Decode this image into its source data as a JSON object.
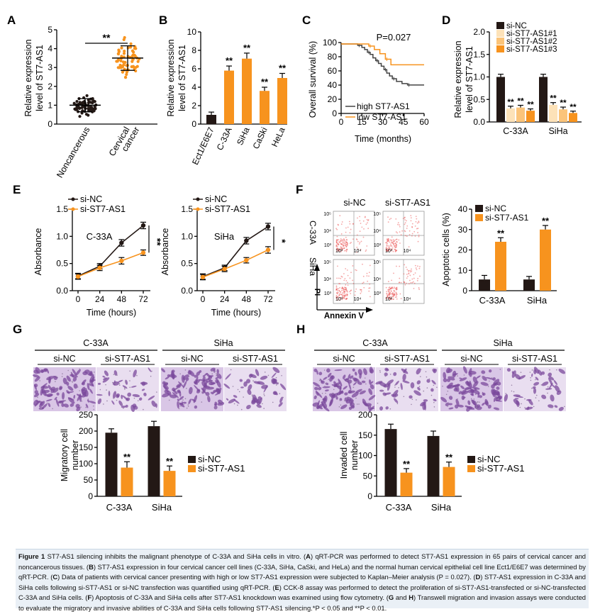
{
  "colors": {
    "black": "#231815",
    "orange": "#f7931e",
    "pale": "#fde2b8",
    "light": "#fbc47a",
    "flowdot": "#e83a3a",
    "stain": "#7b4a9c"
  },
  "panels": {
    "A": {
      "letter": "A",
      "ylabel": [
        "Relative expression",
        "level of ST7-AS1"
      ],
      "yticks": [
        "0",
        "1",
        "2",
        "3",
        "4",
        "5"
      ],
      "cats": [
        "Noncancerous",
        "Cervical cancer"
      ],
      "cat2": [
        "Cervical",
        "cancer"
      ],
      "sig": "**"
    },
    "B": {
      "letter": "B",
      "ylabel": [
        "Relative expression",
        "level of ST7-AS1"
      ],
      "yticks": [
        "0",
        "2",
        "4",
        "6",
        "8",
        "10"
      ],
      "cats": [
        "Ect1/E6E7",
        "C-33A",
        "SiHa",
        "CaSki",
        "HeLa"
      ],
      "sig": [
        "",
        "**",
        "**",
        "**",
        "**"
      ]
    },
    "C": {
      "letter": "C",
      "pval": "P=0.027",
      "ylabel": "Overall survival (%)",
      "xlabel": "Time (months)",
      "yticks": [
        "0",
        "20",
        "40",
        "60",
        "80",
        "100"
      ],
      "xticks": [
        "0",
        "15",
        "30",
        "45",
        "60"
      ],
      "legend": [
        "high ST7-AS1",
        "low ST7-AS1"
      ]
    },
    "D": {
      "letter": "D",
      "ylabel": [
        "Relative expression",
        "level of ST7-AS1"
      ],
      "yticks": [
        "0.0",
        "0.5",
        "1.0",
        "1.5",
        "2.0"
      ],
      "legend": [
        "si-NC",
        "si-ST7-AS1#1",
        "si-ST7-AS1#2",
        "si-ST7-AS1#3"
      ],
      "cats": [
        "C-33A",
        "SiHa"
      ],
      "sig": "**"
    },
    "E": {
      "letter": "E",
      "ylabel": "Absorbance",
      "xlabel": "Time (hours)",
      "legend": [
        "si-NC",
        "si-ST7-AS1"
      ],
      "xticks": [
        "0",
        "24",
        "48",
        "72"
      ],
      "yticks": [
        "0.0",
        "0.5",
        "1.0",
        "1.5"
      ],
      "cells": [
        "C-33A",
        "SiHa"
      ],
      "sig": [
        "**",
        "*"
      ]
    },
    "F": {
      "letter": "F",
      "cols": [
        "si-NC",
        "si-ST7-AS1"
      ],
      "rows": [
        "C-33A",
        "SiHa"
      ],
      "xaxis": "Annexin V",
      "yaxis": "PI",
      "ticks": [
        "10⁵",
        "10⁴",
        "10³",
        "10³",
        "10⁴"
      ],
      "ylabel": "Apoptotic cells (%)",
      "yticks": [
        "0",
        "10",
        "20",
        "30",
        "40"
      ],
      "legend": [
        "si-NC",
        "si-ST7-AS1"
      ],
      "cats": [
        "C-33A",
        "SiHa"
      ],
      "sig": "**"
    },
    "G": {
      "letter": "G",
      "groups": [
        "C-33A",
        "SiHa"
      ],
      "cols": [
        "si-NC",
        "si-ST7-AS1",
        "si-NC",
        "si-ST7-AS1"
      ],
      "ylabel": [
        "Migratory cell",
        "number"
      ],
      "yticks": [
        "0",
        "50",
        "100",
        "150",
        "200",
        "250"
      ],
      "legend": [
        "si-NC",
        "si-ST7-AS1"
      ],
      "cats": [
        "C-33A",
        "SiHa"
      ],
      "sig": "**"
    },
    "H": {
      "letter": "H",
      "groups": [
        "C-33A",
        "SiHa"
      ],
      "cols": [
        "si-NC",
        "si-ST7-AS1",
        "si-NC",
        "si-ST7-AS1"
      ],
      "ylabel": [
        "Invaded cell",
        "number"
      ],
      "yticks": [
        "0",
        "50",
        "100",
        "150",
        "200"
      ],
      "legend": [
        "si-NC",
        "si-ST7-AS1"
      ],
      "cats": [
        "C-33A",
        "SiHa"
      ],
      "sig": "**"
    }
  },
  "chart_data": [
    {
      "panel": "A",
      "type": "scatter",
      "title": "",
      "ylabel": "Relative expression level of ST7-AS1",
      "ylim": [
        0,
        5
      ],
      "categories": [
        "Noncancerous",
        "Cervical cancer"
      ],
      "mean": [
        1.0,
        3.5
      ],
      "sd": [
        0.35,
        0.65
      ],
      "n_per_group": 65
    },
    {
      "panel": "B",
      "type": "bar",
      "ylabel": "Relative expression level of ST7-AS1",
      "ylim": [
        0,
        10
      ],
      "categories": [
        "Ect1/E6E7",
        "C-33A",
        "SiHa",
        "CaSki",
        "HeLa"
      ],
      "values": [
        1.0,
        5.8,
        7.1,
        3.6,
        5.0
      ],
      "errors": [
        0.3,
        0.5,
        0.6,
        0.4,
        0.5
      ]
    },
    {
      "panel": "C",
      "type": "line",
      "ylabel": "Overall survival (%)",
      "xlabel": "Time (months)",
      "xlim": [
        0,
        60
      ],
      "ylim": [
        0,
        100
      ],
      "series": [
        {
          "name": "high ST7-AS1",
          "x": [
            0,
            8,
            12,
            15,
            17,
            19,
            21,
            23,
            25,
            27,
            29,
            31,
            33,
            35,
            37,
            40,
            44,
            48,
            60
          ],
          "y": [
            100,
            100,
            98,
            95,
            92,
            88,
            85,
            80,
            76,
            72,
            68,
            63,
            58,
            54,
            50,
            46,
            43,
            41,
            41
          ]
        },
        {
          "name": "low ST7-AS1",
          "x": [
            0,
            15,
            20,
            24,
            28,
            32,
            36,
            60
          ],
          "y": [
            100,
            100,
            97,
            92,
            86,
            78,
            70,
            70
          ]
        }
      ]
    },
    {
      "panel": "D",
      "type": "bar",
      "ylabel": "Relative expression level of ST7-AS1",
      "ylim": [
        0,
        2.0
      ],
      "categories": [
        "C-33A",
        "SiHa"
      ],
      "series": [
        {
          "name": "si-NC",
          "values": [
            1.0,
            1.0
          ],
          "errors": [
            0.06,
            0.06
          ]
        },
        {
          "name": "si-ST7-AS1#1",
          "values": [
            0.3,
            0.38
          ],
          "errors": [
            0.05,
            0.05
          ]
        },
        {
          "name": "si-ST7-AS1#2",
          "values": [
            0.32,
            0.28
          ],
          "errors": [
            0.05,
            0.05
          ]
        },
        {
          "name": "si-ST7-AS1#3",
          "values": [
            0.25,
            0.2
          ],
          "errors": [
            0.04,
            0.04
          ]
        }
      ]
    },
    {
      "panel": "E1",
      "type": "line",
      "title": "C-33A",
      "ylabel": "Absorbance",
      "xlabel": "Time (hours)",
      "ylim": [
        0,
        1.5
      ],
      "x": [
        0,
        24,
        48,
        72
      ],
      "series": [
        {
          "name": "si-NC",
          "values": [
            0.27,
            0.45,
            0.88,
            1.2
          ],
          "errors": [
            0.05,
            0.05,
            0.06,
            0.06
          ]
        },
        {
          "name": "si-ST7-AS1",
          "values": [
            0.26,
            0.42,
            0.55,
            0.7
          ],
          "errors": [
            0.05,
            0.05,
            0.06,
            0.05
          ]
        }
      ]
    },
    {
      "panel": "E2",
      "type": "line",
      "title": "SiHa",
      "ylabel": "Absorbance",
      "xlabel": "Time (hours)",
      "ylim": [
        0,
        1.5
      ],
      "x": [
        0,
        24,
        48,
        72
      ],
      "series": [
        {
          "name": "si-NC",
          "values": [
            0.26,
            0.42,
            0.92,
            1.18
          ],
          "errors": [
            0.05,
            0.05,
            0.06,
            0.06
          ]
        },
        {
          "name": "si-ST7-AS1",
          "values": [
            0.25,
            0.4,
            0.56,
            0.75
          ],
          "errors": [
            0.05,
            0.05,
            0.05,
            0.06
          ]
        }
      ]
    },
    {
      "panel": "F",
      "type": "bar",
      "ylabel": "Apoptotic cells (%)",
      "ylim": [
        0,
        40
      ],
      "categories": [
        "C-33A",
        "SiHa"
      ],
      "series": [
        {
          "name": "si-NC",
          "values": [
            5.5,
            5.5
          ],
          "errors": [
            2,
            1.5
          ]
        },
        {
          "name": "si-ST7-AS1",
          "values": [
            24,
            30
          ],
          "errors": [
            2,
            2
          ]
        }
      ]
    },
    {
      "panel": "G",
      "type": "bar",
      "ylabel": "Migratory cell number",
      "ylim": [
        0,
        250
      ],
      "categories": [
        "C-33A",
        "SiHa"
      ],
      "series": [
        {
          "name": "si-NC",
          "values": [
            195,
            215
          ],
          "errors": [
            12,
            15
          ]
        },
        {
          "name": "si-ST7-AS1",
          "values": [
            88,
            78
          ],
          "errors": [
            18,
            15
          ]
        }
      ]
    },
    {
      "panel": "H",
      "type": "bar",
      "ylabel": "Invaded cell number",
      "ylim": [
        0,
        200
      ],
      "categories": [
        "C-33A",
        "SiHa"
      ],
      "series": [
        {
          "name": "si-NC",
          "values": [
            165,
            148
          ],
          "errors": [
            12,
            12
          ]
        },
        {
          "name": "si-ST7-AS1",
          "values": [
            58,
            72
          ],
          "errors": [
            10,
            12
          ]
        }
      ]
    }
  ],
  "caption": {
    "lead": "Figure 1",
    "parts": [
      {
        "b": "",
        "t": " ST7-AS1 silencing inhibits the malignant phenotype of C-33A and SiHa cells in vitro. ("
      },
      {
        "b": "A",
        "t": ") qRT-PCR was performed to detect ST7-AS1 expression in 65 pairs of cervical cancer and noncancerous tissues. ("
      },
      {
        "b": "B",
        "t": ") ST7-AS1 expression in four cervical cancer cell lines (C-33A, SiHa, CaSki, and HeLa) and the normal human cervical epithelial cell line Ect1/E6E7 was determined by qRT-PCR. ("
      },
      {
        "b": "C",
        "t": ") Data of patients with cervical cancer presenting with high or low ST7-AS1 expression were subjected to Kaplan–Meier analysis (P = 0.027). ("
      },
      {
        "b": "D",
        "t": ") ST7-AS1 expression in C-33A and SiHa cells following si-ST7-AS1 or si-NC transfection was quantified using qRT-PCR. ("
      },
      {
        "b": "E",
        "t": ") CCK-8 assay was performed to detect the proliferation of si-ST7-AS1-transfected or si-NC-transfected C-33A and SiHa cells. ("
      },
      {
        "b": "F",
        "t": ") Apoptosis of C-33A and SiHa cells after ST7-AS1 knockdown was examined using flow cytometry. ("
      },
      {
        "b": "G",
        "t": " and "
      },
      {
        "b": "H",
        "t": ") Transwell migration and invasion assays were conducted to evaluate the migratory and invasive abilities of C-33A and SiHa cells following ST7-AS1 silencing.*P < 0.05 and **P < 0.01."
      }
    ]
  }
}
